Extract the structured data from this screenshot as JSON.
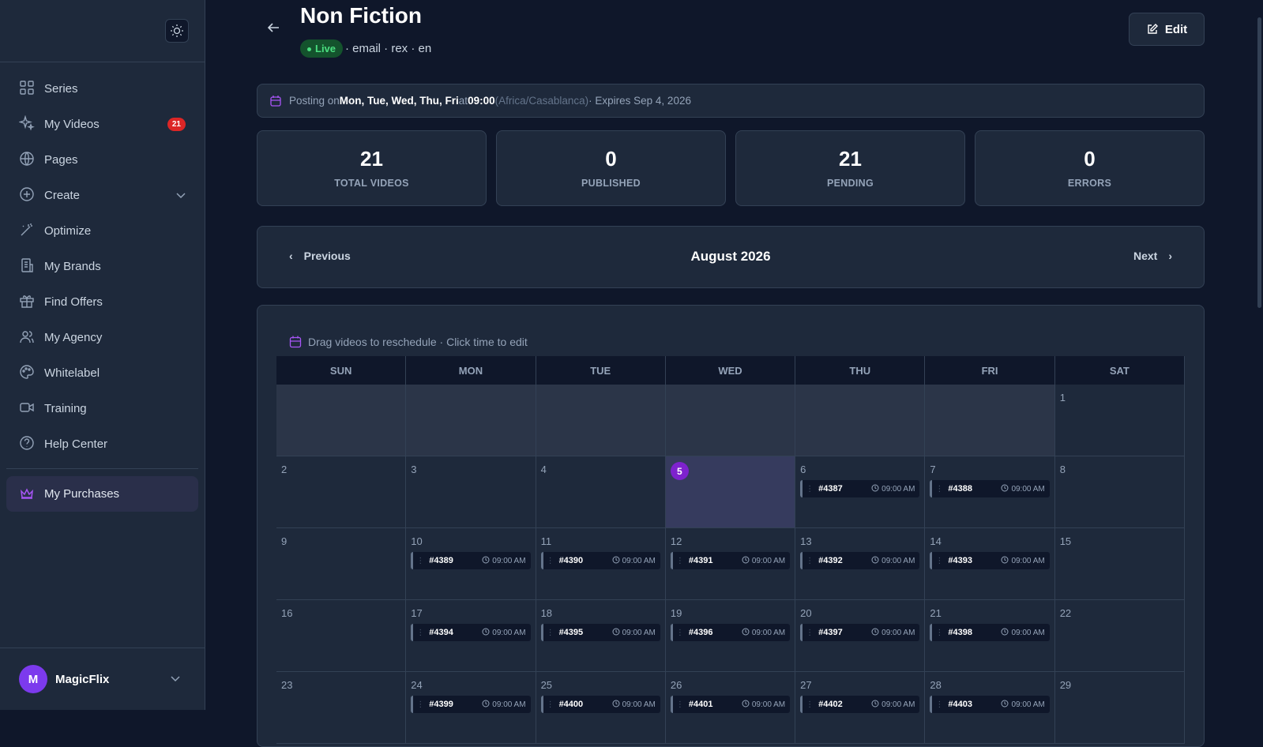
{
  "sidebar": {
    "nav": [
      {
        "label": "Series"
      },
      {
        "label": "My Videos",
        "badge": 21
      },
      {
        "label": "Pages"
      },
      {
        "label": "Create"
      },
      {
        "label": "Optimize"
      },
      {
        "label": "My Brands"
      },
      {
        "label": "Find Offers"
      },
      {
        "label": "My Agency"
      },
      {
        "label": "Whitelabel"
      },
      {
        "label": "Training"
      },
      {
        "label": "Help Center"
      }
    ],
    "purchases": "My Purchases",
    "user": {
      "initial": "M",
      "name": "MagicFlix"
    }
  },
  "header": {
    "title": "Non Fiction",
    "status": "Live",
    "meta": "· email · rex · en",
    "edit": "Edit"
  },
  "schedule": {
    "prefix": "Posting on",
    "days": "Mon, Tue, Wed, Thu, Fri",
    "at": "at",
    "time": "09:00",
    "timezone": "(Africa/Casablanca)",
    "expires": "· Expires Sep 4, 2026"
  },
  "stats": [
    {
      "value": 21,
      "label": "TOTAL VIDEOS"
    },
    {
      "value": 0,
      "label": "PUBLISHED"
    },
    {
      "value": 21,
      "label": "PENDING"
    },
    {
      "value": 0,
      "label": "ERRORS"
    }
  ],
  "month_nav": {
    "previous": "Previous",
    "month": "August 2026",
    "next": "Next"
  },
  "calendar": {
    "hint": "Drag videos to reschedule · Click time to edit",
    "weekdays": [
      "SUN",
      "MON",
      "TUE",
      "WED",
      "THU",
      "FRI",
      "SAT"
    ],
    "weeks": [
      [
        null,
        null,
        null,
        null,
        null,
        null,
        {
          "day": 1
        }
      ],
      [
        {
          "day": 2
        },
        {
          "day": 3
        },
        {
          "day": 4
        },
        {
          "day": 5,
          "today": true
        },
        {
          "day": 6,
          "video": "#4387",
          "time": "09:00 AM"
        },
        {
          "day": 7,
          "video": "#4388",
          "time": "09:00 AM"
        },
        {
          "day": 8
        }
      ],
      [
        {
          "day": 9
        },
        {
          "day": 10,
          "video": "#4389",
          "time": "09:00 AM"
        },
        {
          "day": 11,
          "video": "#4390",
          "time": "09:00 AM"
        },
        {
          "day": 12,
          "video": "#4391",
          "time": "09:00 AM"
        },
        {
          "day": 13,
          "video": "#4392",
          "time": "09:00 AM"
        },
        {
          "day": 14,
          "video": "#4393",
          "time": "09:00 AM"
        },
        {
          "day": 15
        }
      ],
      [
        {
          "day": 16
        },
        {
          "day": 17,
          "video": "#4394",
          "time": "09:00 AM"
        },
        {
          "day": 18,
          "video": "#4395",
          "time": "09:00 AM"
        },
        {
          "day": 19,
          "video": "#4396",
          "time": "09:00 AM"
        },
        {
          "day": 20,
          "video": "#4397",
          "time": "09:00 AM"
        },
        {
          "day": 21,
          "video": "#4398",
          "time": "09:00 AM"
        },
        {
          "day": 22
        }
      ],
      [
        {
          "day": 23
        },
        {
          "day": 24,
          "video": "#4399",
          "time": "09:00 AM"
        },
        {
          "day": 25,
          "video": "#4400",
          "time": "09:00 AM"
        },
        {
          "day": 26,
          "video": "#4401",
          "time": "09:00 AM"
        },
        {
          "day": 27,
          "video": "#4402",
          "time": "09:00 AM"
        },
        {
          "day": 28,
          "video": "#4403",
          "time": "09:00 AM"
        },
        {
          "day": 29
        }
      ]
    ]
  }
}
